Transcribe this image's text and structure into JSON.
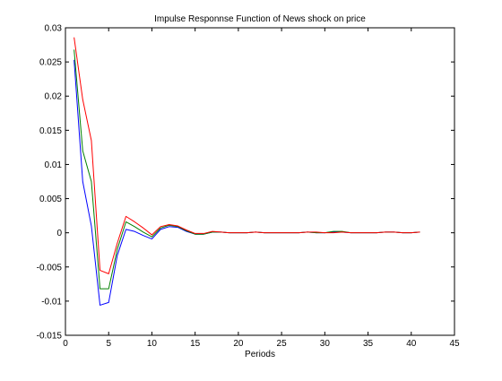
{
  "chart_data": {
    "type": "line",
    "title": "Impulse Responnse Function of News shock on price",
    "xlabel": "Periods",
    "ylabel": "",
    "xlim": [
      0,
      45
    ],
    "ylim": [
      -0.015,
      0.03
    ],
    "x_ticks": [
      0,
      5,
      10,
      15,
      20,
      25,
      30,
      35,
      40,
      45
    ],
    "y_ticks": [
      -0.015,
      -0.01,
      -0.005,
      0,
      0.005,
      0.01,
      0.015,
      0.02,
      0.025,
      0.03
    ],
    "x_tick_labels": [
      "0",
      "5",
      "10",
      "15",
      "20",
      "25",
      "30",
      "35",
      "40",
      "45"
    ],
    "y_tick_labels": [
      "-0.015",
      "-0.01",
      "-0.005",
      "0",
      "0.005",
      "0.01",
      "0.015",
      "0.02",
      "0.025",
      "0.03"
    ],
    "grid": false,
    "x": [
      1,
      2,
      3,
      4,
      5,
      6,
      7,
      8,
      9,
      10,
      11,
      12,
      13,
      14,
      15,
      16,
      17,
      18,
      19,
      20,
      21,
      22,
      23,
      24,
      25,
      26,
      27,
      28,
      29,
      30,
      31,
      32,
      33,
      34,
      35,
      36,
      37,
      38,
      39,
      40,
      41
    ],
    "series": [
      {
        "color": "#0000ff",
        "values": [
          0.0253,
          0.0075,
          0.001,
          -0.0106,
          -0.0102,
          -0.0033,
          0.0005,
          0.0002,
          -0.0004,
          -0.0009,
          0.0005,
          0.0009,
          0.0008,
          0.0002,
          -0.0002,
          -0.0002,
          0.0001,
          0.0001,
          0.0,
          0.0,
          0.0,
          0.0001,
          0.0,
          0.0,
          0.0,
          0.0,
          0.0,
          0.0001,
          0.0,
          0.0,
          0.0001,
          0.0001,
          0.0,
          0.0,
          0.0,
          0.0,
          0.0001,
          0.0001,
          0.0,
          0.0,
          0.0001
        ]
      },
      {
        "color": "#008000",
        "values": [
          0.0268,
          0.012,
          0.0075,
          -0.0082,
          -0.0082,
          -0.0024,
          0.0016,
          0.0009,
          0.0001,
          -0.0006,
          0.0007,
          0.0011,
          0.0009,
          0.0003,
          -0.0002,
          -0.0002,
          0.0001,
          0.0001,
          0.0,
          0.0,
          0.0,
          0.0001,
          0.0,
          0.0,
          0.0,
          0.0,
          0.0,
          0.0001,
          0.0,
          0.0,
          0.0002,
          0.0002,
          0.0,
          0.0,
          0.0,
          0.0,
          0.0001,
          0.0001,
          0.0,
          0.0,
          0.0001
        ]
      },
      {
        "color": "#ff0000",
        "values": [
          0.0286,
          0.0195,
          0.0135,
          -0.0055,
          -0.006,
          -0.0015,
          0.0024,
          0.0016,
          0.0007,
          -0.0003,
          0.0009,
          0.0012,
          0.001,
          0.0004,
          -0.0001,
          -0.0001,
          0.0002,
          0.0001,
          0.0,
          0.0,
          0.0,
          0.0001,
          0.0,
          0.0,
          0.0,
          0.0,
          0.0,
          0.0001,
          0.0001,
          0.0,
          0.0,
          0.0001,
          0.0,
          0.0,
          0.0,
          0.0,
          0.0001,
          0.0001,
          0.0,
          0.0,
          0.0001
        ]
      }
    ]
  }
}
